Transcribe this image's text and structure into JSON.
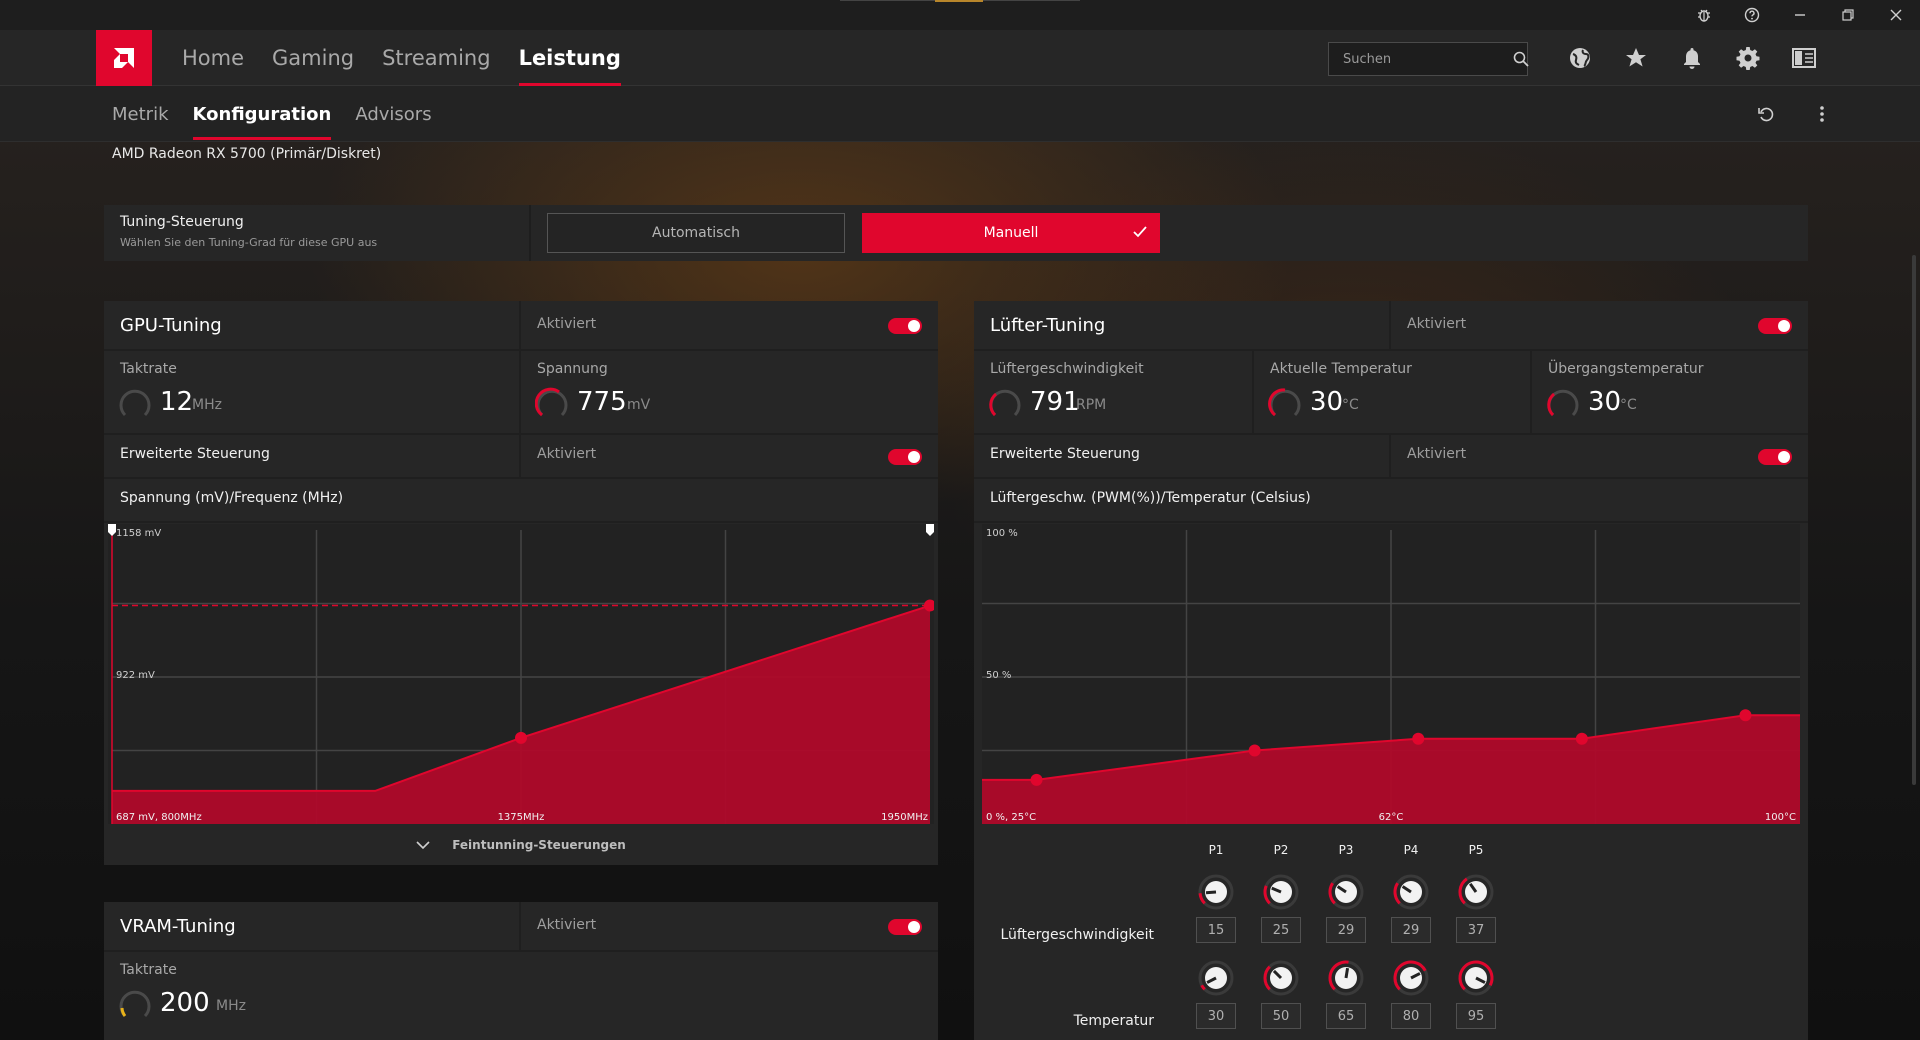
{
  "titlebar": {
    "icons": [
      "bug-icon",
      "help-icon",
      "minimize-icon",
      "restore-icon",
      "close-icon"
    ]
  },
  "nav": {
    "logo": "amd-logo",
    "tabs": [
      {
        "label": "Home"
      },
      {
        "label": "Gaming"
      },
      {
        "label": "Streaming"
      },
      {
        "label": "Leistung"
      }
    ],
    "active_tab": "Leistung",
    "search": {
      "placeholder": "Suchen"
    },
    "icons": [
      "globe-icon",
      "star-icon",
      "bell-icon",
      "gear-icon",
      "sidebar-icon"
    ]
  },
  "subnav": {
    "tabs": [
      {
        "label": "Metrik"
      },
      {
        "label": "Konfiguration"
      },
      {
        "label": "Advisors"
      }
    ],
    "active_tab": "Konfiguration",
    "icons": [
      "reset-icon",
      "more-vertical-icon"
    ]
  },
  "gpu_name": "AMD Radeon RX 5700 (Primär/Diskret)",
  "tuning_control": {
    "label": "Tuning-Steuerung",
    "sublabel": "Wählen Sie den Tuning-Grad für diese GPU aus",
    "auto_label": "Automatisch",
    "manual_label": "Manuell",
    "selected": "Manuell"
  },
  "colors": {
    "accent": "#e0062d",
    "panel": "#262626",
    "chart_fill": "#b00a2a"
  },
  "gpu_tuning": {
    "title": "GPU-Tuning",
    "enabled_label": "Aktiviert",
    "enabled": true,
    "clock": {
      "label": "Taktrate",
      "value": "12",
      "unit": "MHz"
    },
    "voltage": {
      "label": "Spannung",
      "value": "775",
      "unit": "mV"
    },
    "advanced": {
      "label": "Erweiterte Steuerung",
      "enabled_label": "Aktiviert",
      "enabled": true
    },
    "curve_title": "Spannung (mV)/Frequenz (MHz)",
    "y_top_label": "1158 mV",
    "y_mid_label": "922 mV",
    "x_start_label": "687 mV, 800MHz",
    "x_mid_label": "1375MHz",
    "x_end_label": "1950MHz",
    "fine_tuning_label": "Feintunning-Steuerungen"
  },
  "chart_data": [
    {
      "type": "area",
      "title": "Spannung (mV)/Frequenz (MHz)",
      "x": [
        800,
        1170,
        1375,
        1950
      ],
      "y": [
        740,
        740,
        825,
        1037
      ],
      "xlim": [
        800,
        1950
      ],
      "ylim": [
        687,
        1158
      ],
      "grid": true
    },
    {
      "type": "area",
      "title": "Lüftergeschw. (PWM(%))/Temperatur (Celsius)",
      "x": [
        30,
        50,
        65,
        80,
        95
      ],
      "y": [
        15,
        25,
        29,
        29,
        37
      ],
      "xlim": [
        25,
        100
      ],
      "ylim": [
        0,
        100
      ],
      "grid": true
    }
  ],
  "fan_tuning": {
    "title": "Lüfter-Tuning",
    "enabled_label": "Aktiviert",
    "enabled": true,
    "fan_speed": {
      "label": "Lüftergeschwindigkeit",
      "value": "791",
      "unit": "RPM"
    },
    "current_temp": {
      "label": "Aktuelle Temperatur",
      "value": "30",
      "unit": "°C"
    },
    "junction_temp": {
      "label": "Übergangstemperatur",
      "value": "30",
      "unit": "°C"
    },
    "advanced": {
      "label": "Erweiterte Steuerung",
      "enabled_label": "Aktiviert",
      "enabled": true
    },
    "curve_title": "Lüftergeschw. (PWM(%))/Temperatur (Celsius)",
    "y_top_label": "100 %",
    "y_mid_label": "50 %",
    "x_start_label": "0 %, 25°C",
    "x_mid_label": "62°C",
    "x_end_label": "100°C",
    "points": [
      {
        "label": "P1",
        "speed": "15",
        "temp": "30"
      },
      {
        "label": "P2",
        "speed": "25",
        "temp": "50"
      },
      {
        "label": "P3",
        "speed": "29",
        "temp": "65"
      },
      {
        "label": "P4",
        "speed": "29",
        "temp": "80"
      },
      {
        "label": "P5",
        "speed": "37",
        "temp": "95"
      }
    ],
    "speed_row_label": "Lüftergeschwindigkeit",
    "temp_row_label": "Temperatur"
  },
  "vram_tuning": {
    "title": "VRAM-Tuning",
    "enabled_label": "Aktiviert",
    "enabled": true,
    "clock": {
      "label": "Taktrate",
      "value": "200",
      "unit": "MHz"
    }
  }
}
